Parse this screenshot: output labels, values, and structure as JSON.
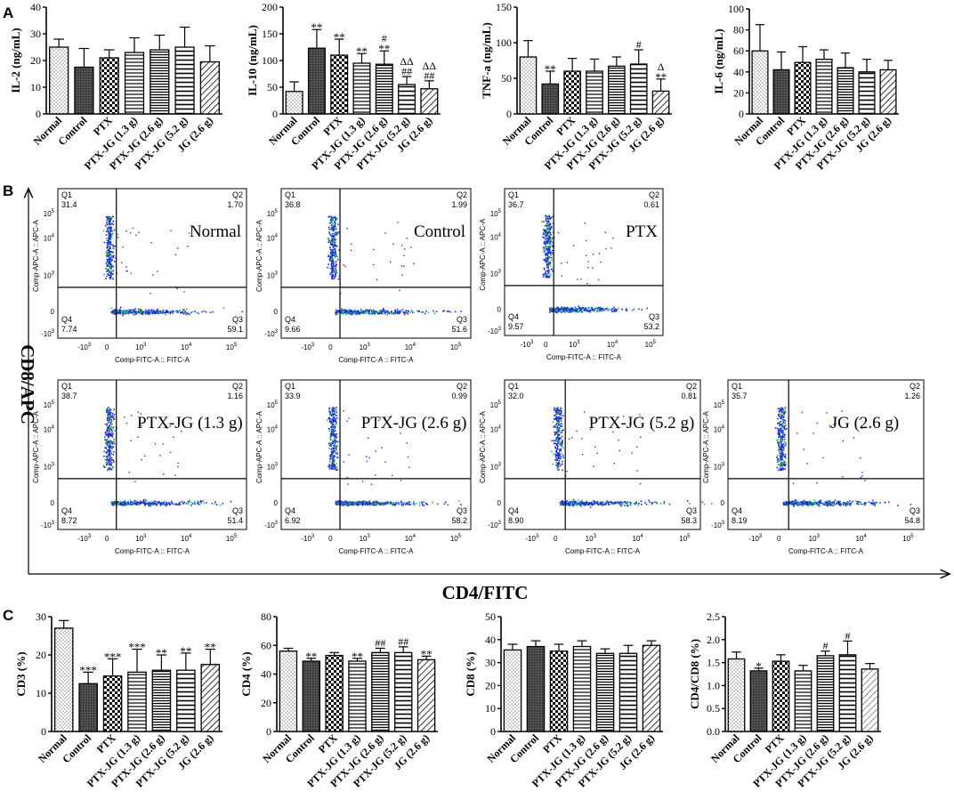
{
  "panel_labels": [
    "A",
    "B",
    "C"
  ],
  "groups": [
    "Normal",
    "Control",
    "PTX",
    "PTX-JG (1.3 g)",
    "PTX-JG (2.6 g)",
    "PTX-JG (5.2 g)",
    "JG (2.6 g)"
  ],
  "colors": {
    "ink": "#000000",
    "dots_blue": "#2233cc",
    "dots_green": "#22bb44",
    "dots_cyan": "#20c0c0"
  },
  "chart_data": [
    {
      "id": "il2",
      "type": "bar",
      "title": "",
      "ylabel": "IL-2 (ng/mL)",
      "xlabel": "",
      "categories": [
        "Normal",
        "Control",
        "PTX",
        "PTX-JG (1.3 g)",
        "PTX-JG (2.6 g)",
        "PTX-JG (5.2 g)",
        "JG (2.6 g)"
      ],
      "values": [
        25,
        17.5,
        21,
        23,
        24,
        25,
        19.5
      ],
      "errors": [
        3,
        7,
        3,
        5.5,
        5.5,
        7.5,
        6
      ],
      "annotations": [
        [],
        [],
        [],
        [],
        [],
        [],
        []
      ],
      "ylim": [
        0,
        40
      ],
      "yticks": [
        0,
        10,
        20,
        30,
        40
      ]
    },
    {
      "id": "il10",
      "type": "bar",
      "title": "",
      "ylabel": "IL-10 (ng/mL)",
      "xlabel": "",
      "categories": [
        "Normal",
        "Control",
        "PTX",
        "PTX-JG (1.3 g)",
        "PTX-JG (2.6 g)",
        "PTX-JG (5.2 g)",
        "JG (2.6 g)"
      ],
      "values": [
        42,
        123,
        110,
        95,
        93,
        55,
        47
      ],
      "errors": [
        18,
        35,
        30,
        18,
        25,
        15,
        15
      ],
      "annotations": [
        [],
        [
          "**"
        ],
        [
          "**"
        ],
        [
          "**"
        ],
        [
          "#",
          "**"
        ],
        [
          "ΔΔ",
          "##"
        ],
        [
          "ΔΔ",
          "##"
        ]
      ],
      "ylim": [
        0,
        200
      ],
      "yticks": [
        0,
        50,
        100,
        150,
        200
      ]
    },
    {
      "id": "tnfa",
      "type": "bar",
      "title": "",
      "ylabel": "TNF-a (ng/mL)",
      "xlabel": "",
      "categories": [
        "Normal",
        "Control",
        "PTX",
        "PTX-JG (1.3 g)",
        "PTX-JG (2.6 g)",
        "PTX-JG (5.2 g)",
        "JG (2.6 g)"
      ],
      "values": [
        80,
        42,
        60,
        60,
        67,
        70,
        32
      ],
      "errors": [
        23,
        18,
        18,
        17,
        13,
        20,
        17
      ],
      "annotations": [
        [],
        [
          "**"
        ],
        [],
        [],
        [],
        [
          "#"
        ],
        [
          "Δ",
          "**"
        ]
      ],
      "ylim": [
        0,
        150
      ],
      "yticks": [
        0,
        50,
        100,
        150
      ]
    },
    {
      "id": "il6",
      "type": "bar",
      "title": "",
      "ylabel": "IL-6 (ng/mL)",
      "xlabel": "",
      "categories": [
        "Normal",
        "Control",
        "PTX",
        "PTX-JG (1.3 g)",
        "PTX-JG (2.6 g)",
        "PTX-JG (5.2 g)",
        "JG (2.6 g)"
      ],
      "values": [
        60,
        42,
        49,
        52,
        44,
        40,
        42
      ],
      "errors": [
        25,
        17,
        15,
        9,
        14,
        12,
        9
      ],
      "annotations": [
        [],
        [],
        [],
        [],
        [],
        [],
        []
      ],
      "ylim": [
        0,
        100
      ],
      "yticks": [
        0,
        20,
        40,
        60,
        80,
        100
      ]
    },
    {
      "id": "cd3",
      "type": "bar",
      "title": "",
      "ylabel": "CD3 (%)",
      "xlabel": "",
      "categories": [
        "Normal",
        "Control",
        "PTX",
        "PTX-JG (1.3 g)",
        "PTX-JG (2.6 g)",
        "PTX-JG (5.2 g)",
        "JG (2.6 g)"
      ],
      "values": [
        27,
        12.5,
        14.5,
        15.5,
        16,
        16,
        17.5
      ],
      "errors": [
        2,
        3,
        4.5,
        6,
        4,
        4.5,
        4
      ],
      "annotations": [
        [],
        [
          "***"
        ],
        [
          "***"
        ],
        [
          "***"
        ],
        [
          "**"
        ],
        [
          "**"
        ],
        [
          "**"
        ]
      ],
      "ylim": [
        0,
        30
      ],
      "yticks": [
        0,
        10,
        20,
        30
      ]
    },
    {
      "id": "cd4",
      "type": "bar",
      "title": "",
      "ylabel": "CD4 (%)",
      "xlabel": "",
      "categories": [
        "Normal",
        "Control",
        "PTX",
        "PTX-JG (1.3 g)",
        "PTX-JG (2.6 g)",
        "PTX-JG (5.2 g)",
        "JG (2.6 g)"
      ],
      "values": [
        56,
        49,
        53,
        49,
        55,
        55,
        50
      ],
      "errors": [
        2,
        2,
        2,
        2,
        3,
        4,
        2.5
      ],
      "annotations": [
        [],
        [
          "**"
        ],
        [],
        [
          "**"
        ],
        [
          "##"
        ],
        [
          "##"
        ],
        [
          "**"
        ]
      ],
      "ylim": [
        0,
        80
      ],
      "yticks": [
        0,
        20,
        40,
        60,
        80
      ]
    },
    {
      "id": "cd8",
      "type": "bar",
      "title": "",
      "ylabel": "CD8 (%)",
      "xlabel": "",
      "categories": [
        "Normal",
        "Control",
        "PTX",
        "PTX-JG (1.3 g)",
        "PTX-JG (2.6 g)",
        "PTX-JG (5.2 g)",
        "JG (2.6 g)"
      ],
      "values": [
        35.5,
        37,
        35,
        37,
        34,
        34,
        37.5
      ],
      "errors": [
        2.5,
        2.5,
        3,
        2.5,
        2,
        3.5,
        2
      ],
      "annotations": [
        [],
        [],
        [],
        [],
        [],
        [],
        []
      ],
      "ylim": [
        0,
        50
      ],
      "yticks": [
        0,
        10,
        20,
        30,
        40,
        50
      ]
    },
    {
      "id": "cd4cd8",
      "type": "bar",
      "title": "",
      "ylabel": "CD4/CD8 (%)",
      "xlabel": "",
      "categories": [
        "Normal",
        "Control",
        "PTX",
        "PTX-JG (1.3 g)",
        "PTX-JG (2.6 g)",
        "PTX-JG (5.2 g)",
        "JG (2.6 g)"
      ],
      "values": [
        1.58,
        1.32,
        1.53,
        1.32,
        1.65,
        1.67,
        1.36
      ],
      "errors": [
        0.15,
        0.06,
        0.14,
        0.12,
        0.1,
        0.3,
        0.12
      ],
      "annotations": [
        [],
        [
          "*"
        ],
        [],
        [],
        [
          "#"
        ],
        [
          "#"
        ],
        []
      ],
      "ylim": [
        0,
        2.5
      ],
      "yticks": [
        0,
        0.5,
        1.0,
        1.5,
        2.0,
        2.5
      ]
    }
  ],
  "flow": {
    "y_axis_title": "CD8/APC",
    "x_axis_title": "CD4/FITC",
    "plot_xlabel": "Comp-FITC-A :: FITC-A",
    "plot_ylabel": "Comp-APC-A :: APC-A",
    "y_ticks": [
      "10^5",
      "10^4",
      "10^3",
      "0",
      "-10^3"
    ],
    "x_ticks": [
      "-10^3",
      "0",
      "10^3",
      "10^4",
      "10^5"
    ],
    "plots": [
      {
        "name": "Normal",
        "q1": "31.4",
        "q2": "1.70",
        "q3": "59.1",
        "q4": "7.74"
      },
      {
        "name": "Control",
        "q1": "36.8",
        "q2": "1.99",
        "q3": "51.6",
        "q4": "9.66"
      },
      {
        "name": "PTX",
        "q1": "36.7",
        "q2": "0.61",
        "q3": "53.2",
        "q4": "9.57"
      },
      {
        "name": "PTX-JG (1.3 g)",
        "q1": "38.7",
        "q2": "1.16",
        "q3": "51.4",
        "q4": "8.72"
      },
      {
        "name": "PTX-JG (2.6 g)",
        "q1": "33.9",
        "q2": "0.99",
        "q3": "58.2",
        "q4": "6.92"
      },
      {
        "name": "PTX-JG (5.2 g)",
        "q1": "32.0",
        "q2": "0.81",
        "q3": "58.3",
        "q4": "8.90"
      },
      {
        "name": "JG (2.6 g)",
        "q1": "35.7",
        "q2": "1.26",
        "q3": "54.8",
        "q4": "8.19"
      }
    ],
    "quadrant_labels": [
      "Q1",
      "Q2",
      "Q3",
      "Q4"
    ]
  }
}
